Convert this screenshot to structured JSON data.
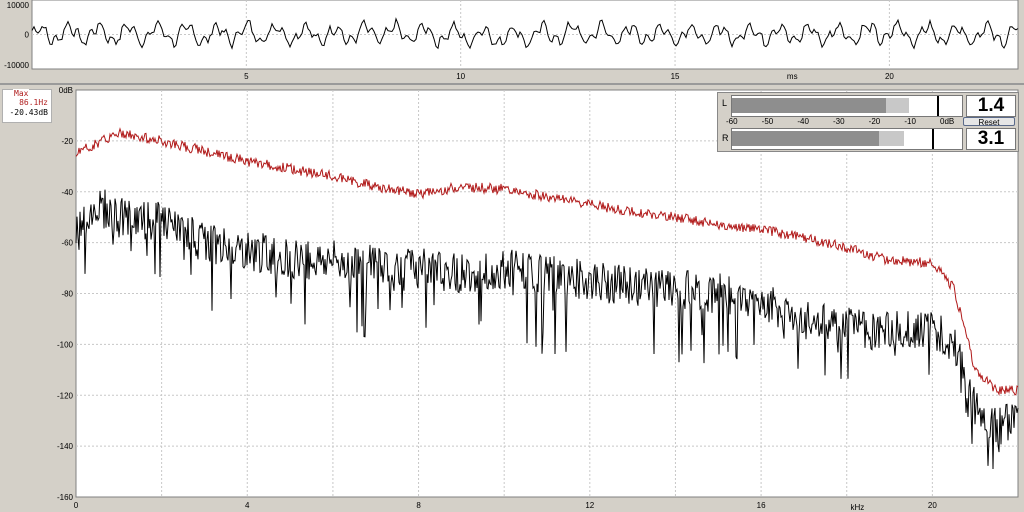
{
  "waveform": {
    "y_ticks": [
      "10000",
      "0",
      "-10000"
    ],
    "x_ticks": [
      "5",
      "10",
      "15",
      "20"
    ],
    "x_unit": "ms"
  },
  "spectrum": {
    "y_ticks": [
      "0dB",
      "-20",
      "-40",
      "-60",
      "-80",
      "-100",
      "-120",
      "-140",
      "-160"
    ],
    "x_ticks": [
      "0",
      "4",
      "8",
      "12",
      "16",
      "20"
    ],
    "x_unit": "kHz"
  },
  "max_readout": {
    "title": "Max",
    "frequency": "86.1Hz",
    "level": "-20.43dB"
  },
  "meter": {
    "left_label": "L",
    "right_label": "R",
    "scale": [
      "-60",
      "-50",
      "-40",
      "-30",
      "-20",
      "-10",
      "0dB"
    ],
    "left_value": "1.4",
    "right_value": "3.1",
    "reset_label": "Reset",
    "left_level_fraction": 0.67,
    "right_level_fraction": 0.64
  },
  "colors": {
    "peak_trace": "#b01818",
    "current_trace": "#000000",
    "grid": "#c8c8c8",
    "plot_bg": "#ffffff",
    "window_bg": "#d4d0c8"
  },
  "chart_data": [
    {
      "type": "line",
      "xlabel": "ms",
      "ylim": [
        -10000,
        10000
      ],
      "x_range": [
        0,
        23
      ],
      "series": [
        {
          "x": [
            0,
            1,
            2,
            3,
            4,
            5,
            6,
            7,
            8,
            9,
            10,
            11,
            12,
            13,
            14,
            15,
            16,
            17,
            18,
            19,
            20,
            21,
            22,
            23
          ],
          "values": [
            0,
            300,
            200,
            400,
            -200,
            500,
            300,
            -100,
            400,
            200,
            -300,
            -600,
            100,
            300,
            0,
            200,
            -100,
            300,
            0,
            200,
            400,
            100,
            300,
            -300
          ]
        }
      ]
    },
    {
      "type": "line",
      "xlabel": "kHz",
      "ylim": [
        -160,
        0
      ],
      "x_range": [
        0,
        22
      ],
      "series": [
        {
          "x": [
            0,
            1,
            2,
            3,
            4,
            5,
            6,
            7,
            8,
            9,
            10,
            11,
            12,
            13,
            14,
            15,
            16,
            17,
            18,
            19,
            20,
            20.5,
            21,
            21.5,
            22
          ],
          "values": [
            -25,
            -17,
            -20,
            -24,
            -28,
            -31,
            -34,
            -38,
            -41,
            -38,
            -39,
            -42,
            -45,
            -48,
            -50,
            -53,
            -55,
            -58,
            -62,
            -67,
            -68,
            -78,
            -110,
            -118,
            -118
          ]
        },
        {
          "x": [
            0,
            0.5,
            1,
            2,
            3,
            4,
            5,
            6,
            7,
            8,
            9,
            10,
            11,
            12,
            13,
            14,
            15,
            16,
            17,
            18,
            19,
            20,
            20.5,
            21,
            21.5,
            22
          ],
          "values": [
            -55,
            -45,
            -50,
            -52,
            -60,
            -63,
            -66,
            -67,
            -68,
            -70,
            -72,
            -70,
            -73,
            -75,
            -77,
            -78,
            -80,
            -83,
            -90,
            -93,
            -95,
            -93,
            -100,
            -125,
            -132,
            -130
          ]
        }
      ]
    }
  ]
}
